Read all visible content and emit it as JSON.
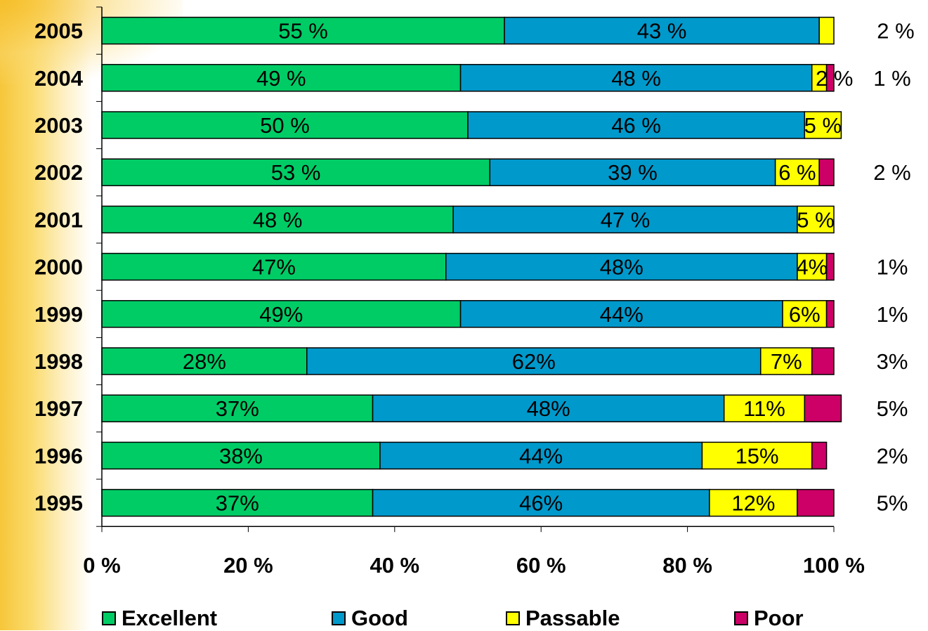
{
  "colors": {
    "excellent": "#00cc66",
    "good": "#0099cc",
    "passable": "#ffff00",
    "poor": "#cc0066"
  },
  "legend": [
    {
      "label": "Excellent",
      "color": "#00cc66"
    },
    {
      "label": "Good",
      "color": "#0099cc"
    },
    {
      "label": "Passable",
      "color": "#ffff00"
    },
    {
      "label": "Poor",
      "color": "#cc0066"
    }
  ],
  "chart_data": {
    "type": "bar",
    "orientation": "horizontal",
    "stacked": "percent",
    "title": "",
    "xlabel": "",
    "ylabel": "",
    "xlim": [
      0,
      100
    ],
    "x_ticks": [
      "0 %",
      "20 %",
      "40 %",
      "60 %",
      "80 %",
      "100 %"
    ],
    "legend_position": "bottom",
    "grid": false,
    "categories": [
      "2005",
      "2004",
      "2003",
      "2002",
      "2001",
      "2000",
      "1999",
      "1998",
      "1997",
      "1996",
      "1995"
    ],
    "series": [
      {
        "name": "Excellent",
        "values": [
          55,
          49,
          50,
          53,
          48,
          47,
          49,
          28,
          37,
          38,
          37
        ],
        "labels": [
          "55 %",
          "49 %",
          "50 %",
          "53 %",
          "48 %",
          "47%",
          "49%",
          "28%",
          "37%",
          "38%",
          "37%"
        ]
      },
      {
        "name": "Good",
        "values": [
          43,
          48,
          46,
          39,
          47,
          48,
          44,
          62,
          48,
          44,
          46
        ],
        "labels": [
          "43 %",
          "48 %",
          "46 %",
          "39 %",
          "47 %",
          "48%",
          "44%",
          "62%",
          "48%",
          "44%",
          "46%"
        ]
      },
      {
        "name": "Passable",
        "values": [
          2,
          2,
          5,
          6,
          5,
          4,
          6,
          7,
          11,
          15,
          12
        ],
        "labels": [
          "2 %",
          "2 %",
          "5 %",
          "6 %",
          "5 %",
          "4%",
          "6%",
          "7%",
          "11%",
          "15%",
          "12%"
        ]
      },
      {
        "name": "Poor",
        "values": [
          0,
          1,
          0,
          2,
          0,
          1,
          1,
          3,
          5,
          2,
          5
        ],
        "labels": [
          "",
          "1 %",
          "",
          "2 %",
          "",
          "1%",
          "1%",
          "3%",
          "5%",
          "2%",
          "5%"
        ]
      }
    ]
  }
}
